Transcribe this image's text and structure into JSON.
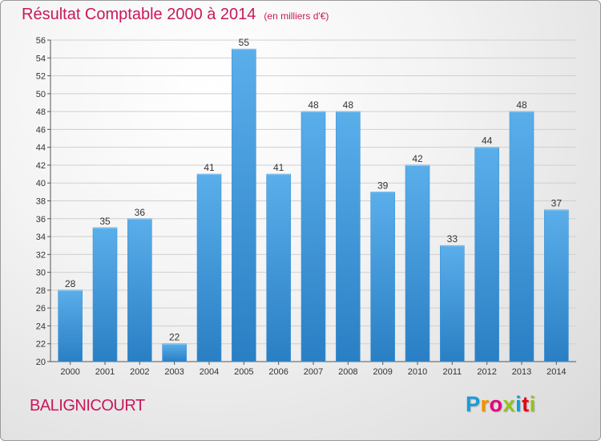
{
  "header": {
    "title": "Résultat Comptable 2000 à 2014",
    "subtitle": "(en milliers d'€)"
  },
  "footer": {
    "city": "BALIGNICOURT",
    "logo_letters": [
      "P",
      "r",
      "o",
      "x",
      "i",
      "t",
      "i"
    ],
    "logo_colors": [
      "#1a9bd7",
      "#f39200",
      "#e2007a",
      "#95c11f",
      "#009fe3",
      "#e30613",
      "#95c11f"
    ]
  },
  "colors": {
    "title": "#c8185a",
    "bar_top": "#5aaeea",
    "bar_bottom": "#2a7fc4",
    "grid": "#cfcfcf"
  },
  "chart_data": {
    "type": "bar",
    "title": "Résultat Comptable 2000 à 2014",
    "xlabel": "",
    "ylabel": "",
    "categories": [
      "2000",
      "2001",
      "2002",
      "2003",
      "2004",
      "2005",
      "2006",
      "2007",
      "2008",
      "2009",
      "2010",
      "2011",
      "2012",
      "2013",
      "2014"
    ],
    "values": [
      28,
      35,
      36,
      22,
      41,
      55,
      41,
      48,
      48,
      39,
      42,
      33,
      44,
      48,
      37
    ],
    "ylim": [
      20,
      56
    ],
    "yticks": [
      20,
      22,
      24,
      26,
      28,
      30,
      32,
      34,
      36,
      38,
      40,
      42,
      44,
      46,
      48,
      50,
      52,
      54,
      56
    ],
    "grid": true
  }
}
